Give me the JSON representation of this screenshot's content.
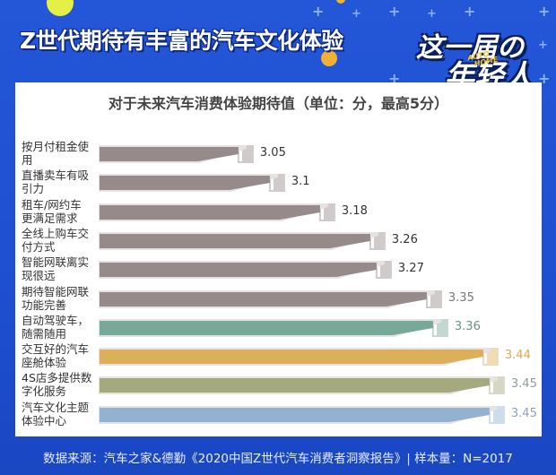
{
  "header": {
    "title": "Z世代期待有丰富的汽车文化体验",
    "badge_line1": "这一届の",
    "badge_line2": "年轻人",
    "badge_tag1": "AUTO",
    "badge_tag2": "HOME"
  },
  "footer": {
    "source": "数据来源：汽车之家&德勤《2020中国Z世代汽车消费者洞察报告》| 样本量：N=2017"
  },
  "chart_data": {
    "type": "bar",
    "orientation": "horizontal",
    "title": "对于未来汽车消费体验期待值（单位：分，最高5分）",
    "xlabel": "",
    "ylabel": "",
    "grid": false,
    "legend": null,
    "categories": [
      "按月付租金使用",
      "直播卖车有吸引力",
      "租车/网约车更满足需求",
      "全线上购车交付方式",
      "智能网联离实现很远",
      "期待智能网联功能完善",
      "自动驾驶车，随需随用",
      "交互好的汽车座舱体验",
      "4S店多提供数字化服务",
      "汽车文化主题体验中心"
    ],
    "values": [
      3.05,
      3.1,
      3.18,
      3.26,
      3.27,
      3.35,
      3.36,
      3.44,
      3.45,
      3.45
    ],
    "value_labels": [
      "3.05",
      "3.1",
      "3.18",
      "3.26",
      "3.27",
      "3.35",
      "3.36",
      "3.44",
      "3.45",
      "3.45"
    ],
    "label_lines": [
      [
        "按月付租金使",
        "用"
      ],
      [
        "直播卖车有吸",
        "引力"
      ],
      [
        "租车/网约车",
        "更满足需求"
      ],
      [
        "全线上购车交",
        "付方式"
      ],
      [
        "智能网联离实",
        "现很远"
      ],
      [
        "期待智能网联",
        "功能完善"
      ],
      [
        "自动驾驶车，",
        "随需随用"
      ],
      [
        "交互好的汽车",
        "座舱体验"
      ],
      [
        "4S店多提供数",
        "字化服务"
      ],
      [
        "汽车文化主题",
        "体验中心"
      ]
    ],
    "colors": [
      "#968a8b",
      "#968a8b",
      "#968a8b",
      "#968a8b",
      "#968a8b",
      "#968a8b",
      "#78a898",
      "#dcb05a",
      "#a4a97e",
      "#93b2d2"
    ],
    "label_colors": [
      "#333333",
      "#333333",
      "#333333",
      "#333333",
      "#333333",
      "#777777",
      "#6e8f86",
      "#d9aa55",
      "#8f9b98",
      "#8fa2b8"
    ]
  }
}
